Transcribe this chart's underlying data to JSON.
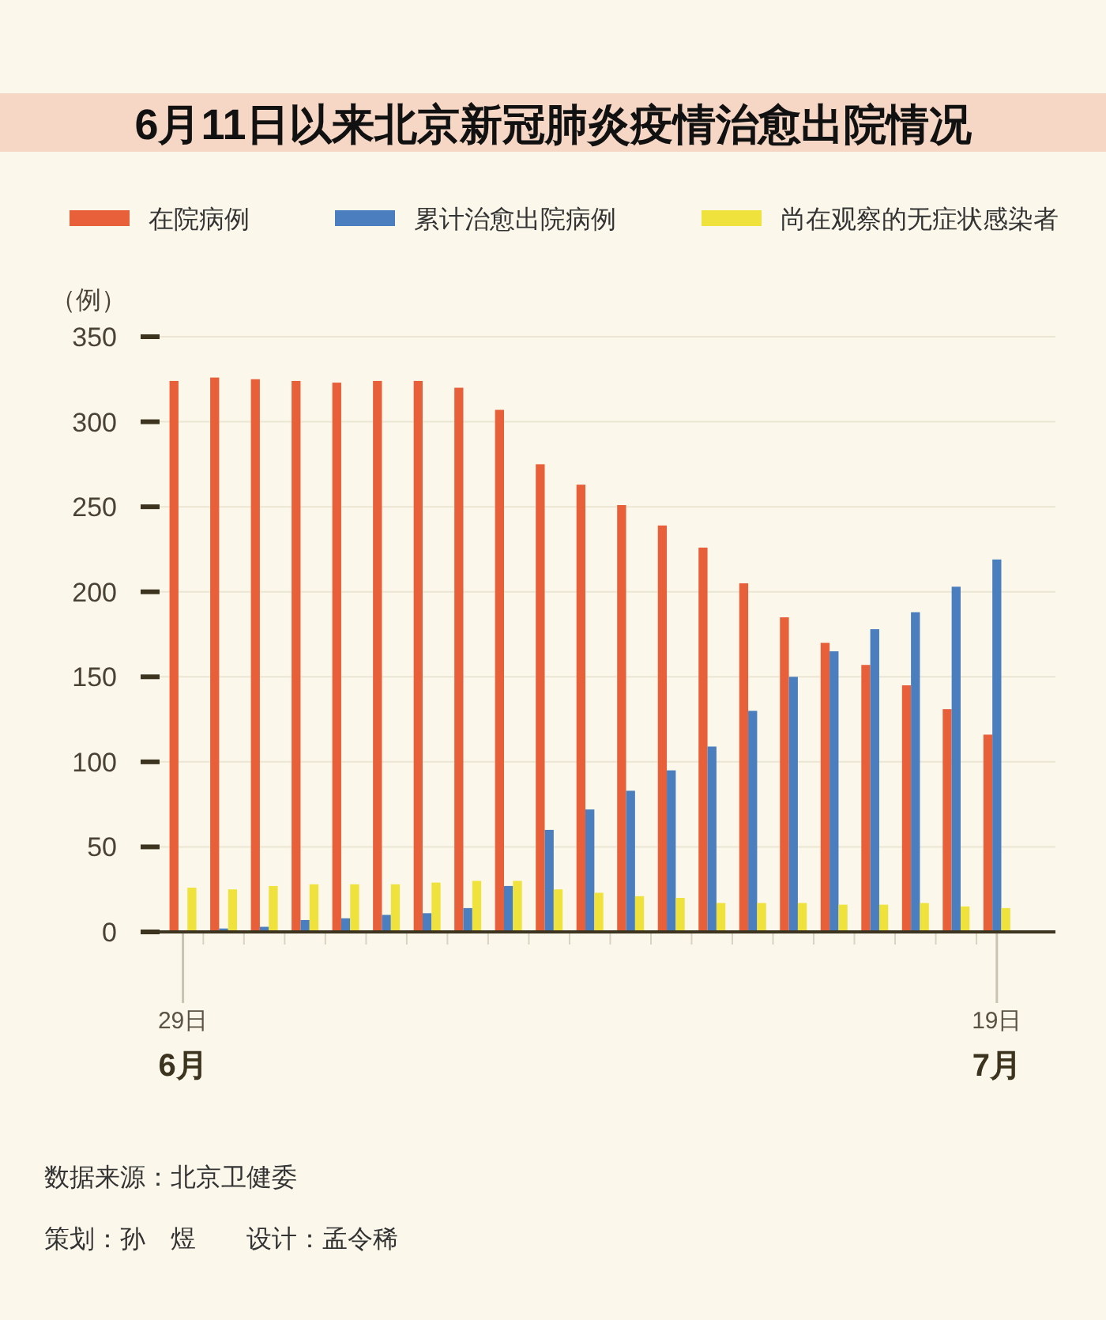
{
  "chart_data": {
    "type": "bar",
    "title": "6月11日以来北京新冠肺炎疫情治愈出院情况",
    "ylabel": "（例）",
    "categories": [
      "29日",
      null,
      null,
      null,
      null,
      null,
      null,
      null,
      null,
      null,
      null,
      null,
      null,
      null,
      null,
      null,
      null,
      null,
      null,
      null,
      "19日"
    ],
    "series": [
      {
        "name": "在院病例",
        "color": "#e8603a",
        "values": [
          324,
          326,
          325,
          324,
          323,
          324,
          324,
          320,
          307,
          275,
          263,
          251,
          239,
          226,
          205,
          185,
          170,
          157,
          145,
          131,
          116
        ]
      },
      {
        "name": "累计治愈出院病例",
        "color": "#4a7ebe",
        "values": [
          0,
          2,
          3,
          7,
          8,
          10,
          11,
          14,
          27,
          60,
          72,
          83,
          95,
          109,
          130,
          150,
          165,
          178,
          188,
          203,
          219
        ]
      },
      {
        "name": "尚在观察的无症状感染者",
        "color": "#efe23c",
        "values": [
          26,
          25,
          27,
          28,
          28,
          28,
          29,
          30,
          30,
          25,
          23,
          21,
          20,
          17,
          17,
          17,
          16,
          16,
          17,
          15,
          14
        ]
      }
    ],
    "ylim": [
      0,
      350
    ],
    "yticks": [
      0,
      50,
      100,
      150,
      200,
      250,
      300,
      350
    ],
    "grid": "y",
    "legend": "top",
    "annotations": [
      "6月",
      "7月",
      "数据来源：北京卫健委",
      "策划：孙　煜　　设计：孟令稀"
    ]
  }
}
